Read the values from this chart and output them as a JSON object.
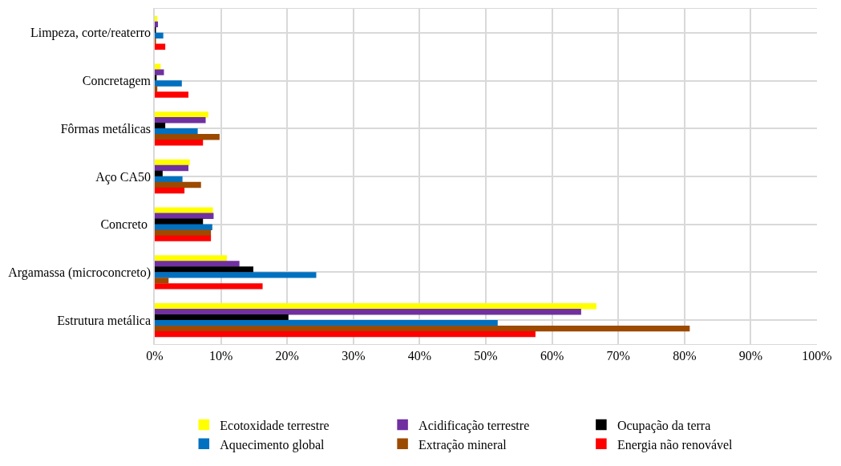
{
  "chart_data": {
    "type": "bar",
    "orientation": "horizontal",
    "categories": [
      "Limpeza, corte/reaterro",
      "Concretagem",
      "Fôrmas metálicas",
      "Aço CA50",
      "Concreto ",
      "Argamassa (microconcreto)",
      "Estrutura metálica"
    ],
    "series": [
      {
        "name": "Ecotoxidade terrestre",
        "color": "#ffff00",
        "values": [
          0.3,
          0.8,
          8.0,
          5.2,
          8.7,
          10.8,
          66.6
        ]
      },
      {
        "name": "Acidificação terrestre",
        "color": "#7030a0",
        "values": [
          0.4,
          1.3,
          7.6,
          5.0,
          8.8,
          12.7,
          64.3
        ]
      },
      {
        "name": "Ocupação da terra",
        "color": "#000000",
        "values": [
          0.1,
          0.2,
          1.5,
          1.1,
          7.2,
          14.8,
          20.1
        ]
      },
      {
        "name": "Aquecimento global",
        "color": "#0070c0",
        "values": [
          1.2,
          4.0,
          6.4,
          4.1,
          8.6,
          24.3,
          51.7
        ]
      },
      {
        "name": "Extração mineral",
        "color": "#9c4a00",
        "values": [
          0.1,
          0.3,
          9.7,
          6.9,
          8.4,
          2.0,
          80.7
        ]
      },
      {
        "name": "Energia não renovável",
        "color": "#ff0000",
        "values": [
          1.5,
          5.0,
          7.2,
          4.4,
          8.4,
          16.2,
          57.4
        ]
      }
    ],
    "xlim": [
      0,
      100
    ],
    "xticks": [
      {
        "value": 0,
        "label": "0%"
      },
      {
        "value": 10,
        "label": "10%"
      },
      {
        "value": 20,
        "label": "20%"
      },
      {
        "value": 30,
        "label": "30%"
      },
      {
        "value": 40,
        "label": "40%"
      },
      {
        "value": 50,
        "label": "50%"
      },
      {
        "value": 60,
        "label": "60%"
      },
      {
        "value": 70,
        "label": "70%"
      },
      {
        "value": 80,
        "label": "80%"
      },
      {
        "value": 90,
        "label": "90%"
      },
      {
        "value": 100,
        "label": "100%"
      }
    ],
    "grid": true,
    "legend": "bottom"
  }
}
